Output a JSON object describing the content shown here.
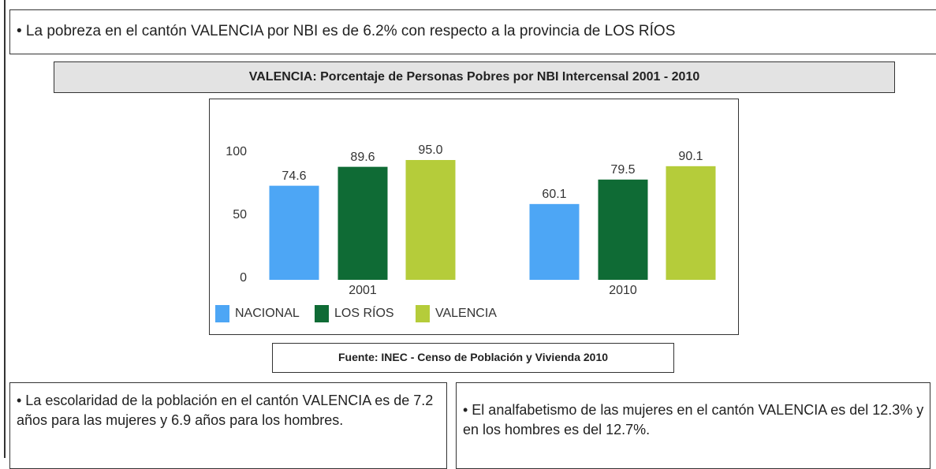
{
  "header": {
    "text": "• La pobreza en el cantón VALENCIA por NBI es de 6.2% con respecto a la provincia de LOS RÍOS"
  },
  "chart_data": {
    "type": "bar",
    "title": "VALENCIA: Porcentaje de Personas Pobres por NBI Intercensal 2001 - 2010",
    "categories": [
      "2001",
      "2010"
    ],
    "series": [
      {
        "name": "NACIONAL",
        "color": "#4da6f5",
        "values": [
          74.6,
          60.1
        ],
        "value_labels": [
          "74.6",
          "60.1"
        ]
      },
      {
        "name": "LOS RÍOS",
        "color": "#0f6b35",
        "values": [
          89.6,
          79.5
        ],
        "value_labels": [
          "89.6",
          "79.5"
        ]
      },
      {
        "name": "VALENCIA",
        "color": "#b5cc3a",
        "values": [
          95.0,
          90.1
        ],
        "value_labels": [
          "95.0",
          "90.1"
        ]
      }
    ],
    "ylim": [
      0,
      100
    ],
    "yticks": [
      0,
      50,
      100
    ],
    "grid": false
  },
  "source": "Fuente: INEC -  Censo de Población y Vivienda  2010",
  "notes": [
    "• La escolaridad de la población en el cantón VALENCIA es de 7.2 años para las mujeres y 6.9 años para los hombres.",
    "• El analfabetismo de las mujeres en el cantón VALENCIA es del 12.3% y en  los hombres es del 12.7%."
  ]
}
